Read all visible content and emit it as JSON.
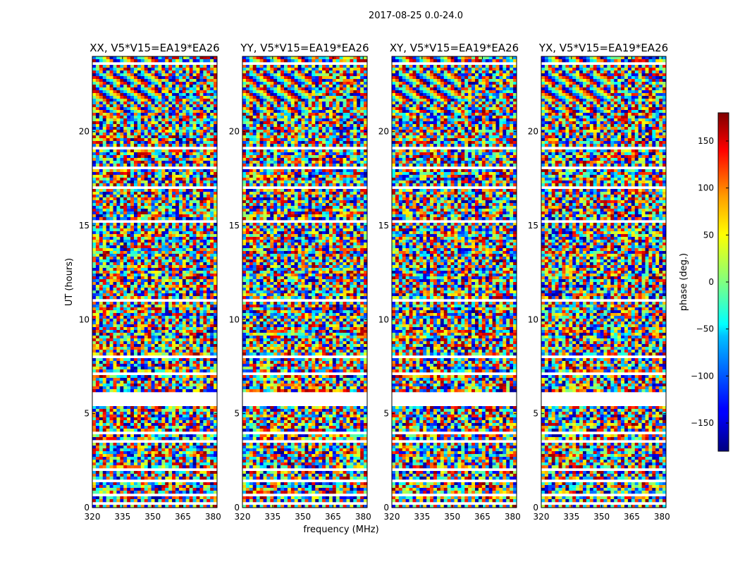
{
  "figure": {
    "suptitle": "2017-08-25 0.0-24.0",
    "xlabel": "frequency (MHz)",
    "ylabel": "UT (hours)",
    "colorbar_label": "phase (deg.)"
  },
  "chart_data": {
    "type": "heatmap",
    "subplots": [
      {
        "title": "XX, V5*V15=EA19*EA26"
      },
      {
        "title": "YY, V5*V15=EA19*EA26"
      },
      {
        "title": "XY, V5*V15=EA19*EA26"
      },
      {
        "title": "YX, V5*V15=EA19*EA26"
      }
    ],
    "x_ticks": [
      "320",
      "335",
      "350",
      "365",
      "380"
    ],
    "x_tick_values": [
      320,
      335,
      350,
      365,
      380
    ],
    "xlim": [
      320,
      382
    ],
    "y_ticks": [
      "0",
      "5",
      "10",
      "15",
      "20"
    ],
    "y_tick_values": [
      0,
      5,
      10,
      15,
      20
    ],
    "ylim": [
      0,
      24
    ],
    "colorbar": {
      "ticks": [
        "150",
        "100",
        "50",
        "0",
        "−50",
        "−100",
        "−150"
      ],
      "tick_values": [
        150,
        100,
        50,
        0,
        -50,
        -100,
        -150
      ],
      "range": [
        -180,
        180
      ],
      "colormap": "jet"
    },
    "gaps_hours": [
      [
        0.2,
        0.35
      ],
      [
        0.6,
        0.75
      ],
      [
        1.3,
        1.45
      ],
      [
        2.0,
        2.08
      ],
      [
        3.5,
        3.55
      ],
      [
        3.9,
        4.1
      ],
      [
        5.4,
        6.1
      ],
      [
        7.1,
        7.15
      ],
      [
        8.0,
        8.1
      ],
      [
        10.0,
        10.1
      ],
      [
        11.0,
        11.05
      ],
      [
        12.1,
        12.15
      ],
      [
        13.5,
        13.55
      ],
      [
        15.2,
        15.25
      ],
      [
        16.0,
        16.1
      ],
      [
        17.0,
        17.05
      ],
      [
        18.0,
        18.1
      ],
      [
        19.1,
        19.15
      ],
      [
        20.5,
        20.55
      ],
      [
        22.3,
        22.4
      ],
      [
        23.6,
        23.7
      ]
    ],
    "grid": false
  }
}
